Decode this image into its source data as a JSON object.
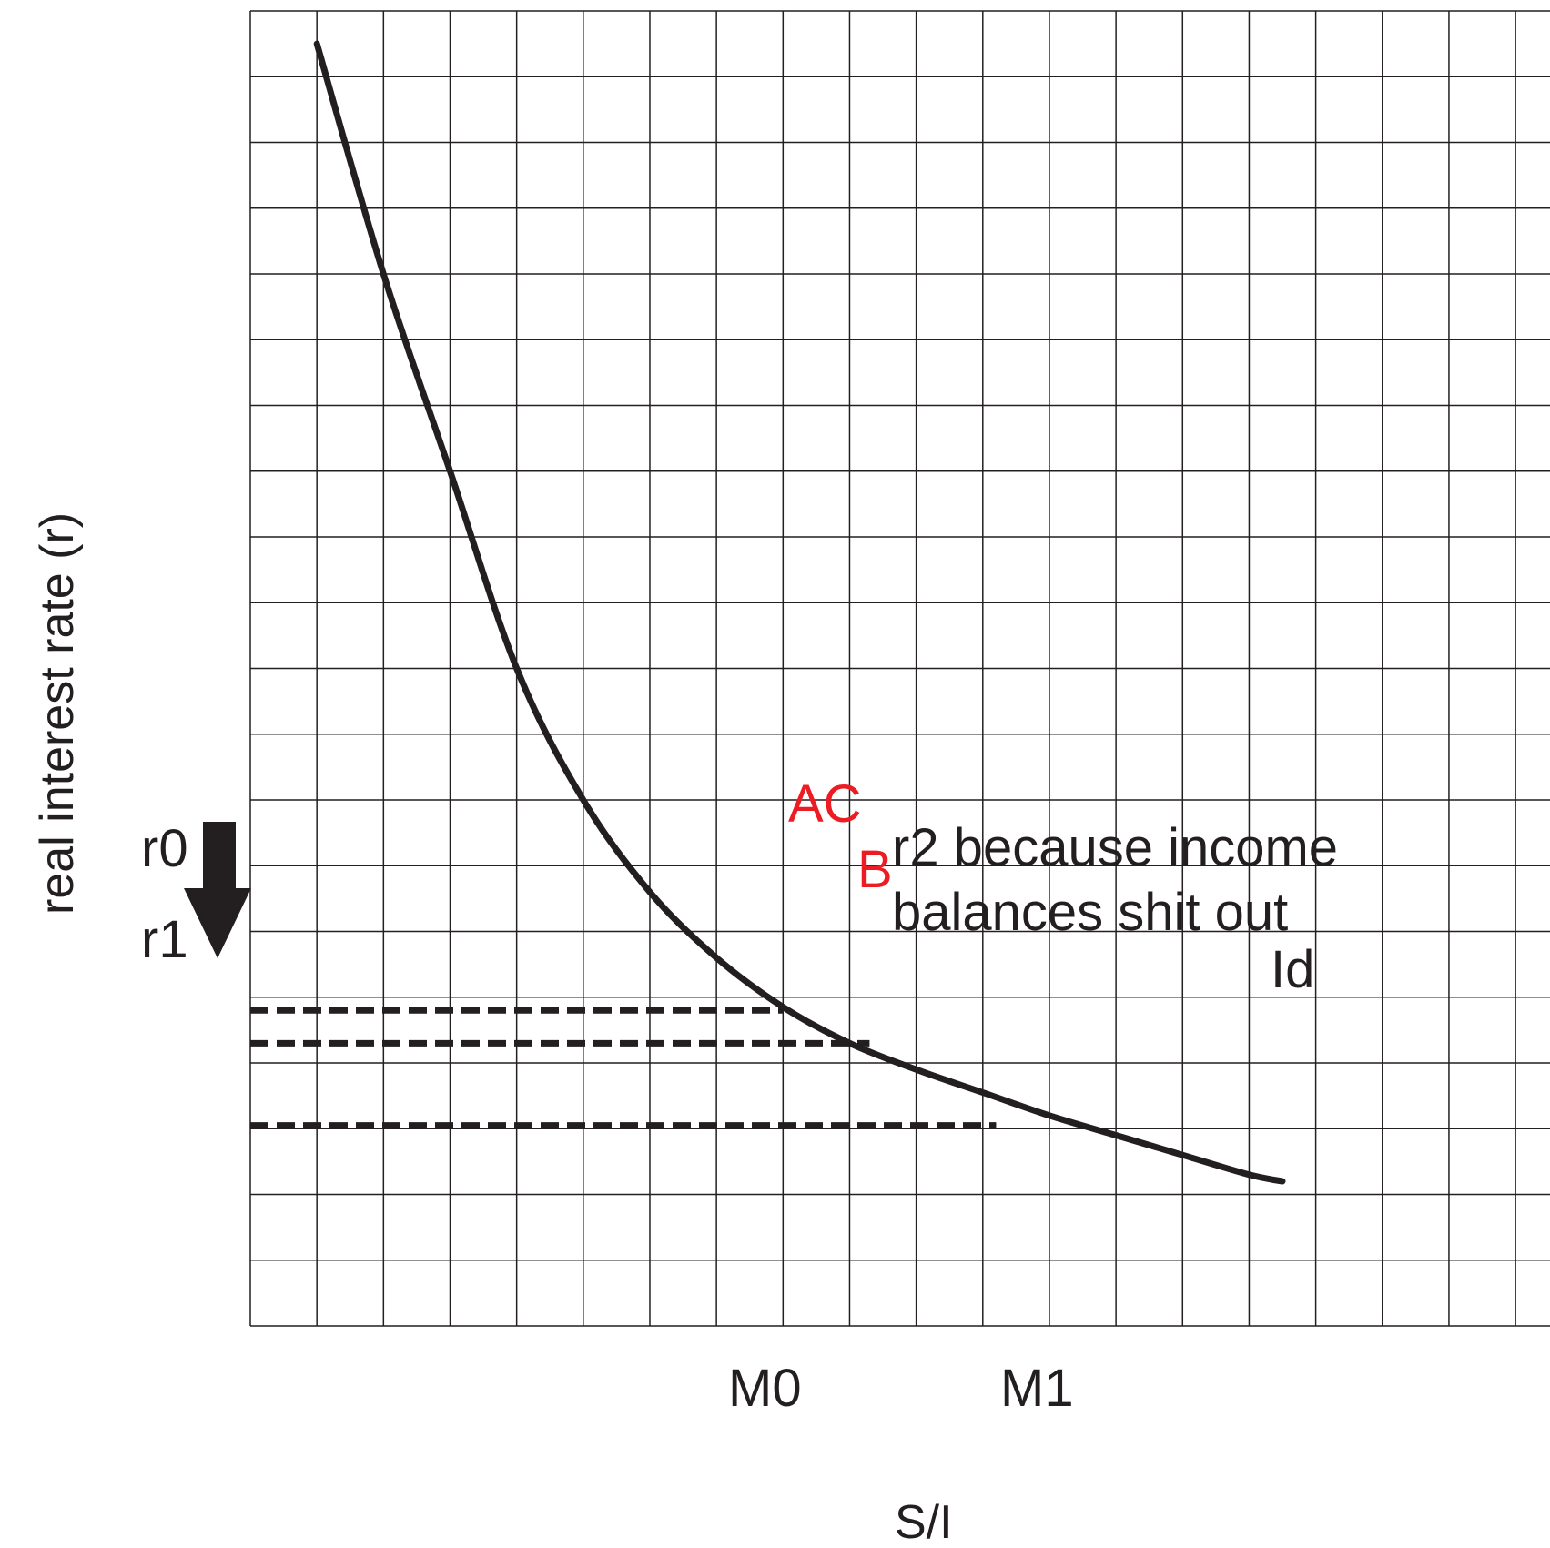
{
  "chart_data": {
    "type": "line",
    "xlabel": "S/I",
    "ylabel": "real interest rate (r)",
    "grid": true,
    "x_ticks": [
      "M0",
      "M1"
    ],
    "y_ticks": [
      "r0",
      "r1"
    ],
    "series": [
      {
        "name": "Id",
        "x": [
          1.0,
          2.0,
          3.0,
          4.0,
          5.0,
          6.0,
          7.0,
          8.0,
          9.0,
          10.0,
          11.0,
          12.0,
          13.0,
          14.0,
          15.0,
          15.5
        ],
        "y": [
          19.5,
          16.0,
          13.0,
          10.0,
          8.0,
          6.6,
          5.6,
          4.85,
          4.3,
          3.9,
          3.55,
          3.2,
          2.9,
          2.6,
          2.3,
          2.2
        ]
      }
    ],
    "xlim": [
      0,
      19.6
    ],
    "ylim": [
      0,
      20
    ],
    "reference_lines": [
      {
        "label": "r0",
        "y": 4.8,
        "x_end": 8.0
      },
      {
        "label": "",
        "y": 4.3,
        "x_end": 9.3
      },
      {
        "label": "r1",
        "y": 3.05,
        "x_end": 11.2
      }
    ],
    "point_labels": [
      {
        "text": "AC",
        "x": 8.8,
        "y": 5.0
      },
      {
        "text": "B",
        "x": 9.4,
        "y": 4.45
      }
    ],
    "annotations": [
      "r2 because income",
      "balances shit out"
    ],
    "arrow": "down",
    "colors": {
      "curve": "#231f20",
      "grid": "#231f20",
      "point_labels": "#ec1c24"
    }
  }
}
